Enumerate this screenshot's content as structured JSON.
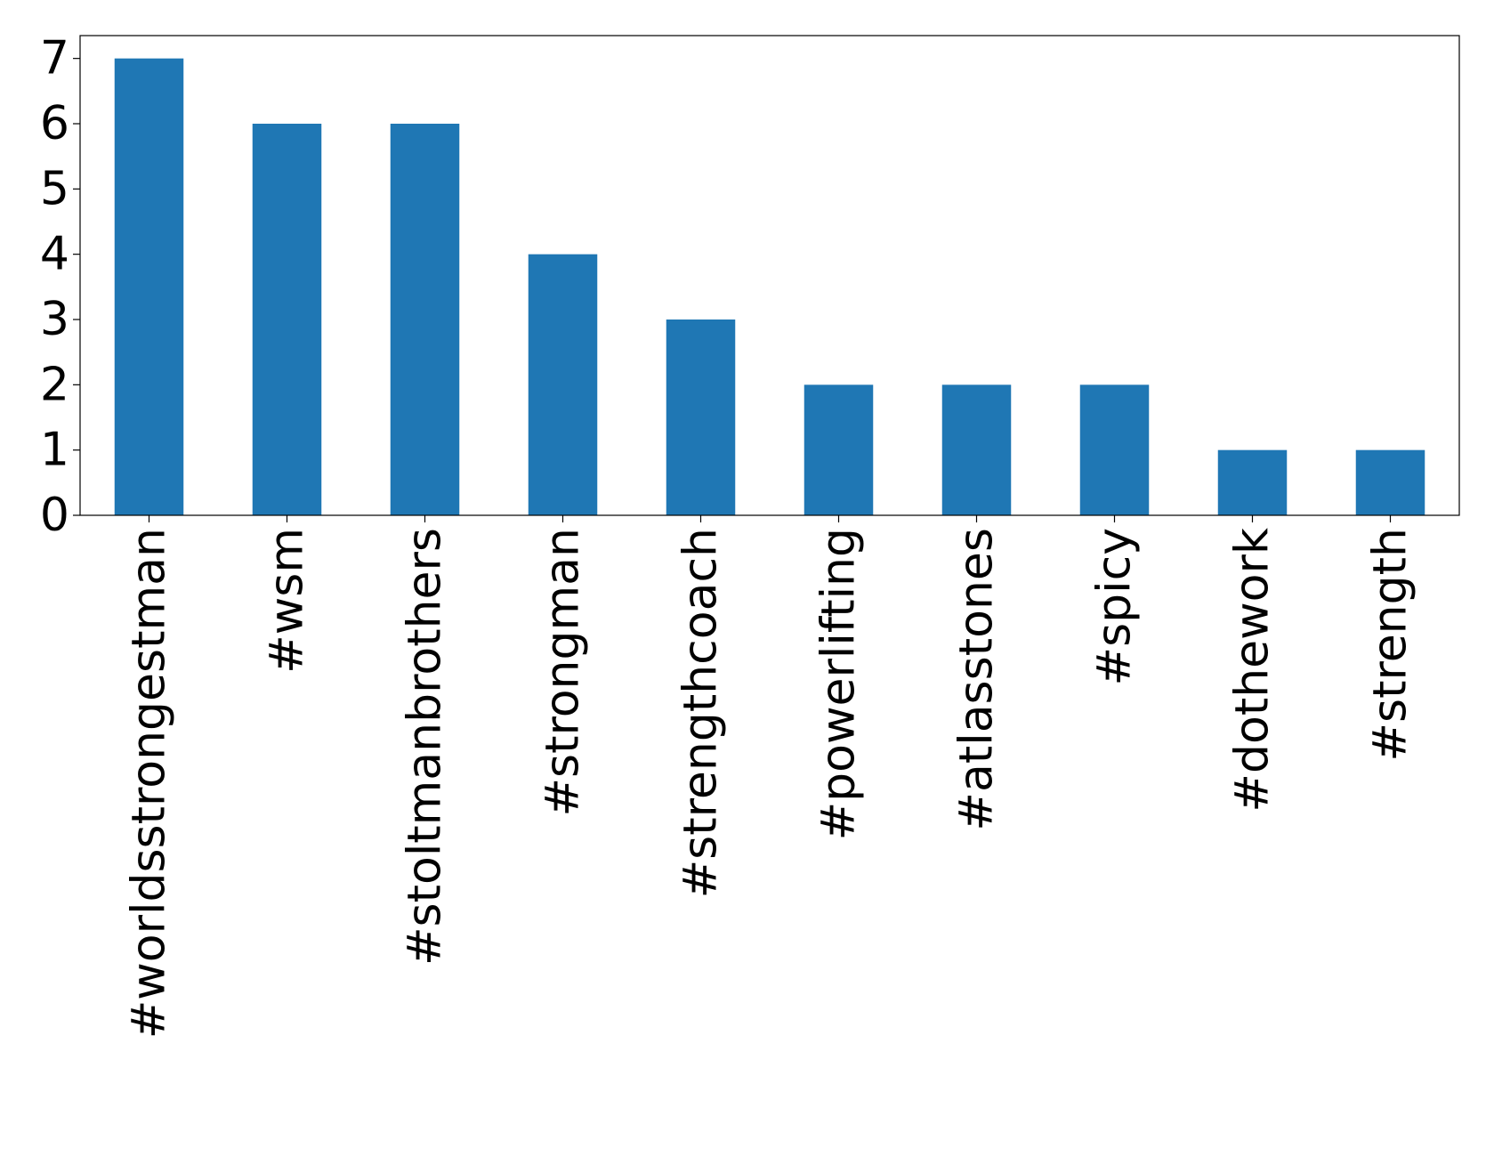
{
  "chart_data": {
    "type": "bar",
    "categories": [
      "#worldsstrongestman",
      "#wsm",
      "#stoltmanbrothers",
      "#strongman",
      "#strengthcoach",
      "#powerlifting",
      "#atlasstones",
      "#spicy",
      "#dothework",
      "#strength"
    ],
    "values": [
      7,
      6,
      6,
      4,
      3,
      2,
      2,
      2,
      1,
      1
    ],
    "color": "#1f77b4",
    "ylim": [
      0,
      7.35
    ],
    "yticks": [
      0,
      1,
      2,
      3,
      4,
      5,
      6,
      7
    ]
  }
}
